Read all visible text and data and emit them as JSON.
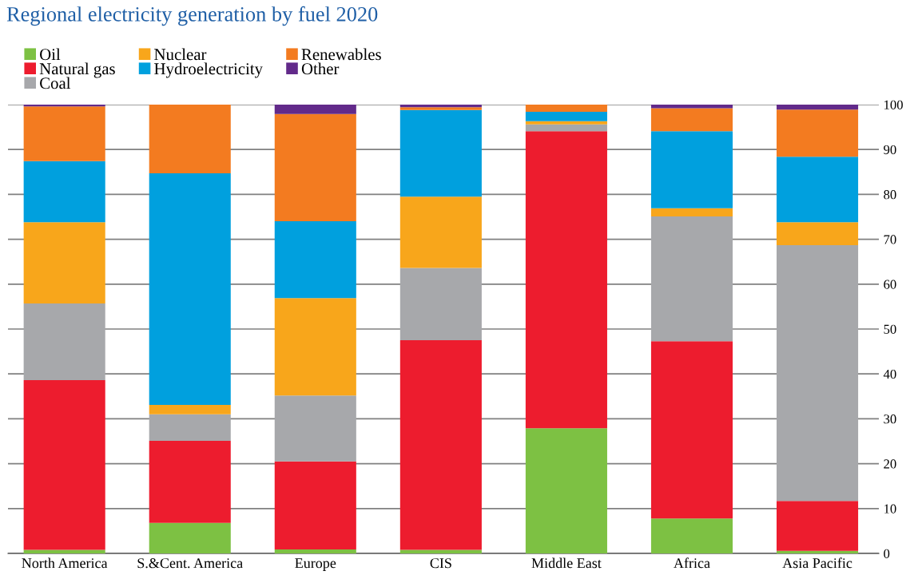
{
  "chart_data": {
    "type": "bar",
    "title": "Regional electricity generation by fuel 2020",
    "stacked": true,
    "categories": [
      "North America",
      "S.&Cent. America",
      "Europe",
      "CIS",
      "Middle East",
      "Africa",
      "Asia Pacific"
    ],
    "series": [
      {
        "name": "Oil",
        "color": "#7dc143",
        "values": [
          0.8,
          6.8,
          0.9,
          0.8,
          27.9,
          7.8,
          0.6
        ]
      },
      {
        "name": "Natural gas",
        "color": "#ed1c2e",
        "values": [
          37.8,
          18.3,
          19.6,
          46.7,
          66.2,
          39.5,
          11.1
        ]
      },
      {
        "name": "Coal",
        "color": "#a7a8ab",
        "values": [
          17.1,
          5.9,
          14.7,
          16.1,
          1.5,
          27.8,
          57.0
        ]
      },
      {
        "name": "Nuclear",
        "color": "#f8a61b",
        "values": [
          18.1,
          2.1,
          21.7,
          15.9,
          0.7,
          1.8,
          5.1
        ]
      },
      {
        "name": "Hydroelectricity",
        "color": "#00a0de",
        "values": [
          13.6,
          51.6,
          17.1,
          19.3,
          2.1,
          17.2,
          14.6
        ]
      },
      {
        "name": "Renewables",
        "color": "#f37b20",
        "values": [
          12.2,
          15.3,
          23.9,
          0.6,
          1.6,
          5.1,
          10.5
        ]
      },
      {
        "name": "Other",
        "color": "#622a8a",
        "values": [
          0.4,
          0,
          2.1,
          0.6,
          0,
          0.8,
          1.1
        ]
      }
    ],
    "ylim": [
      0,
      100
    ],
    "yticks": [
      0,
      10,
      20,
      30,
      40,
      50,
      60,
      70,
      80,
      90,
      100
    ],
    "grid": "y",
    "legend": "top left"
  }
}
